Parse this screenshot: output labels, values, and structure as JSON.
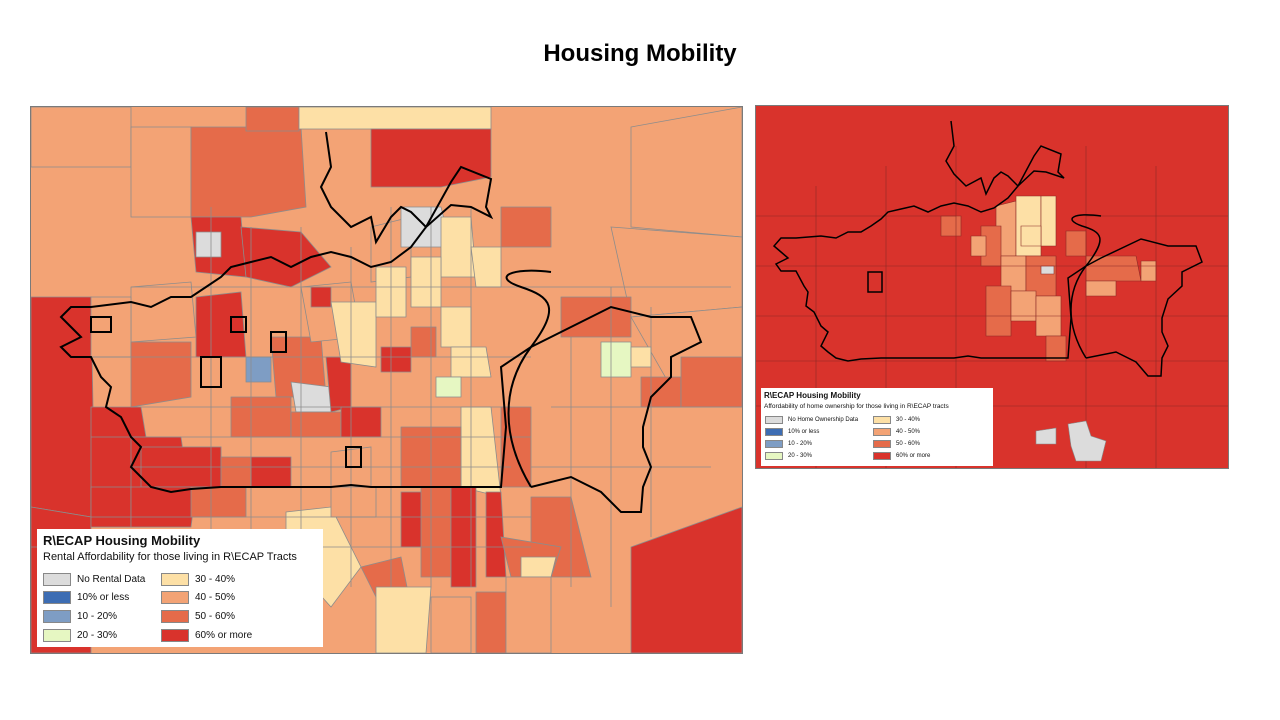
{
  "slide": {
    "title": "Housing Mobility"
  },
  "colors": {
    "no_data": "#dcdcdc",
    "c_10_or_less": "#3d6db3",
    "c_10_20": "#7e9dc4",
    "c_20_30": "#e6f7c2",
    "c_30_40": "#fde0a6",
    "c_40_50": "#f3a375",
    "c_50_60": "#e56b4a",
    "c_60_more": "#d9332c",
    "boundary": "#000000"
  },
  "rental_map": {
    "legend": {
      "title": "R\\ECAP Housing Mobility",
      "subtitle": "Rental Affordability for those living in R\\ECAP Tracts",
      "items": [
        {
          "label": "No Rental Data",
          "color": "#dcdcdc"
        },
        {
          "label": "10% or less",
          "color": "#3d6db3"
        },
        {
          "label": "10 - 20%",
          "color": "#7e9dc4"
        },
        {
          "label": "20 - 30%",
          "color": "#e6f7c2"
        },
        {
          "label": "30 - 40%",
          "color": "#fde0a6"
        },
        {
          "label": "40 - 50%",
          "color": "#f3a375"
        },
        {
          "label": "50 - 60%",
          "color": "#e56b4a"
        },
        {
          "label": "60% or more",
          "color": "#d9332c"
        }
      ]
    }
  },
  "ownership_map": {
    "legend": {
      "title": "R\\ECAP Housing Mobility",
      "subtitle": "Affordability of home ownership for those living in R\\ECAP tracts",
      "items": [
        {
          "label": "No Home Ownership Data",
          "color": "#dcdcdc"
        },
        {
          "label": "10% or less",
          "color": "#3d6db3"
        },
        {
          "label": "10 - 20%",
          "color": "#7e9dc4"
        },
        {
          "label": "20 - 30%",
          "color": "#e6f7c2"
        },
        {
          "label": "30 - 40%",
          "color": "#fde0a6"
        },
        {
          "label": "40 - 50%",
          "color": "#f3a375"
        },
        {
          "label": "50 - 60%",
          "color": "#e56b4a"
        },
        {
          "label": "60% or more",
          "color": "#d9332c"
        }
      ]
    }
  }
}
